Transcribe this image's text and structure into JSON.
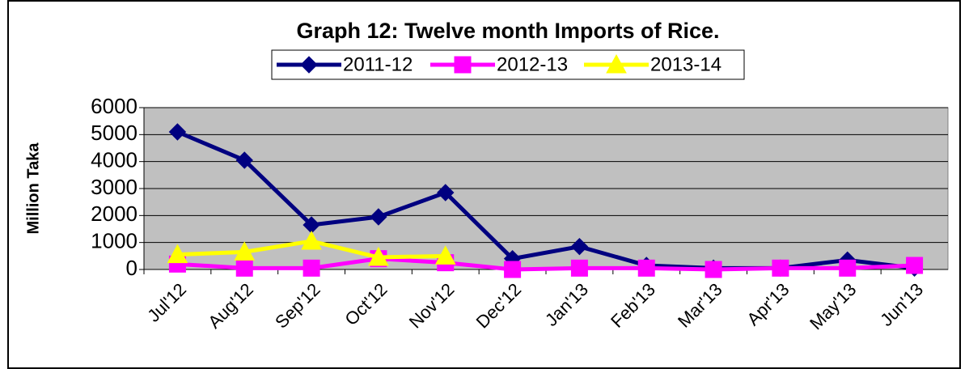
{
  "chart_data": {
    "type": "line",
    "title": "Graph 12: Twelve month Imports of Rice.",
    "y_label": "Million Taka",
    "categories": [
      "Jul'12",
      "Aug'12",
      "Sep'12",
      "Oct'12",
      "Nov'12",
      "Dec'12",
      "Jan'13",
      "Feb'13",
      "Mar'13",
      "Apr'13",
      "May'13",
      "Jun'13"
    ],
    "series": [
      {
        "name": "2011-12",
        "color": "#000080",
        "marker": "diamond",
        "values": [
          5100,
          4050,
          1650,
          1950,
          2850,
          400,
          850,
          150,
          50,
          50,
          350,
          50
        ]
      },
      {
        "name": "2012-13",
        "color": "#ff00ff",
        "marker": "square",
        "values": [
          200,
          50,
          50,
          400,
          250,
          0,
          50,
          50,
          0,
          50,
          50,
          150
        ]
      },
      {
        "name": "2013-14",
        "color": "#ffff00",
        "marker": "triangle",
        "values": [
          550,
          650,
          1050,
          450,
          500,
          null,
          null,
          null,
          null,
          null,
          null,
          null
        ]
      }
    ],
    "ylim": [
      0,
      6000
    ],
    "yticks": [
      0,
      1000,
      2000,
      3000,
      4000,
      5000,
      6000
    ],
    "grid": true,
    "plot_background": "#c0c0c0",
    "legend": "top"
  }
}
